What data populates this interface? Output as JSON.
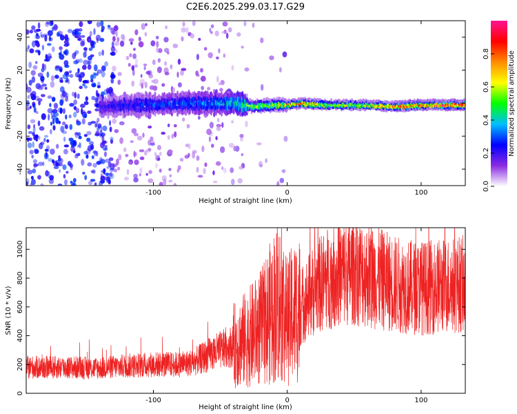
{
  "title": "C2E6.2025.299.03.17.G29",
  "chart_data": [
    {
      "type": "heatmap",
      "xlabel": "Height of straight line (km)",
      "ylabel": "Frequency (Hz)",
      "xlim": [
        -195,
        133
      ],
      "ylim": [
        -50,
        50
      ],
      "xticks": [
        -100,
        0,
        100
      ],
      "yticks": [
        -40,
        -20,
        0,
        20,
        40
      ],
      "colorbar": {
        "label": "Normalized spectral amplitude",
        "range": [
          0,
          1
        ],
        "ticks": [
          0.0,
          0.2,
          0.4,
          0.6,
          0.8
        ],
        "colors": [
          "#ffffff",
          "#8a2be2",
          "#0000ff",
          "#00bfff",
          "#00ff00",
          "#ffff00",
          "#ff8c00",
          "#ff0000",
          "#ff1493"
        ]
      },
      "ridge": [
        {
          "x": -135,
          "y": -2,
          "amp": 0.2
        },
        {
          "x": -120,
          "y": -1,
          "amp": 0.25
        },
        {
          "x": -100,
          "y": -1,
          "amp": 0.28
        },
        {
          "x": -80,
          "y": 0,
          "amp": 0.3
        },
        {
          "x": -60,
          "y": 0,
          "amp": 0.32
        },
        {
          "x": -40,
          "y": 0,
          "amp": 0.4
        },
        {
          "x": -25,
          "y": -2,
          "amp": 0.55
        },
        {
          "x": -10,
          "y": -1,
          "amp": 0.6
        },
        {
          "x": 0,
          "y": -1,
          "amp": 0.75
        },
        {
          "x": 10,
          "y": 0,
          "amp": 0.8
        },
        {
          "x": 30,
          "y": -1,
          "amp": 0.6
        },
        {
          "x": 60,
          "y": -1,
          "amp": 0.65
        },
        {
          "x": 80,
          "y": -2,
          "amp": 0.85
        },
        {
          "x": 100,
          "y": -1,
          "amp": 0.8
        },
        {
          "x": 133,
          "y": -1,
          "amp": 0.95
        }
      ]
    },
    {
      "type": "line",
      "xlabel": "Height of straight line (km)",
      "ylabel": "SNR (10 * v/v)",
      "xlim": [
        -195,
        133
      ],
      "ylim": [
        0,
        1150
      ],
      "xticks": [
        -100,
        0,
        100
      ],
      "yticks": [
        0,
        200,
        400,
        600,
        800,
        1000
      ],
      "color": "#ee2222",
      "series": [
        {
          "x": -195,
          "y": 180
        },
        {
          "x": -170,
          "y": 180
        },
        {
          "x": -140,
          "y": 175
        },
        {
          "x": -120,
          "y": 190
        },
        {
          "x": -100,
          "y": 200
        },
        {
          "x": -80,
          "y": 200
        },
        {
          "x": -70,
          "y": 215
        },
        {
          "x": -60,
          "y": 260
        },
        {
          "x": -50,
          "y": 300
        },
        {
          "x": -40,
          "y": 330
        },
        {
          "x": -30,
          "y": 380
        },
        {
          "x": -20,
          "y": 450
        },
        {
          "x": -15,
          "y": 520
        },
        {
          "x": -10,
          "y": 600
        },
        {
          "x": -5,
          "y": 640
        },
        {
          "x": 0,
          "y": 500
        },
        {
          "x": 5,
          "y": 560
        },
        {
          "x": 10,
          "y": 600
        },
        {
          "x": 15,
          "y": 660
        },
        {
          "x": 20,
          "y": 720
        },
        {
          "x": 30,
          "y": 800
        },
        {
          "x": 40,
          "y": 830
        },
        {
          "x": 50,
          "y": 850
        },
        {
          "x": 60,
          "y": 820
        },
        {
          "x": 70,
          "y": 790
        },
        {
          "x": 80,
          "y": 760
        },
        {
          "x": 90,
          "y": 740
        },
        {
          "x": 100,
          "y": 730
        },
        {
          "x": 110,
          "y": 740
        },
        {
          "x": 120,
          "y": 750
        },
        {
          "x": 133,
          "y": 760
        }
      ]
    }
  ]
}
